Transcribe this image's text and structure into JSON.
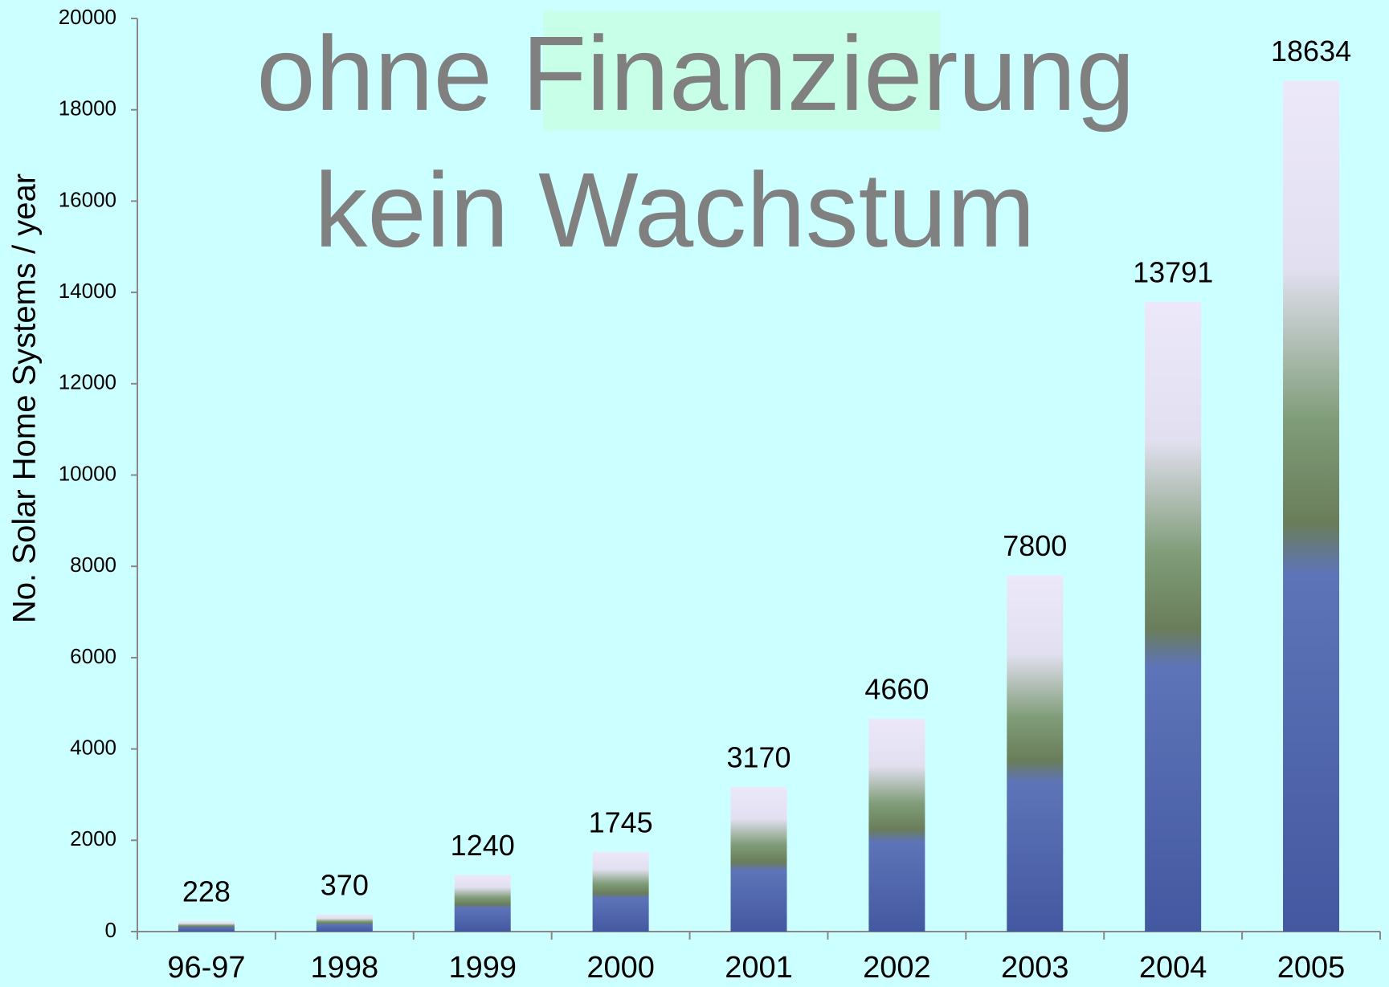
{
  "chart_data": {
    "type": "bar",
    "title": "ohne Finanzierung",
    "subtitle": "kein Wachstum",
    "y_label": "No. Solar Home Systems / year",
    "categories": [
      "96-97",
      "1998",
      "1999",
      "2000",
      "2001",
      "2002",
      "2003",
      "2004",
      "2005"
    ],
    "values": [
      228,
      370,
      1240,
      1745,
      3170,
      4660,
      7800,
      13791,
      18634
    ],
    "ylim": [
      0,
      20000
    ],
    "yticks": [
      0,
      2000,
      4000,
      6000,
      8000,
      10000,
      12000,
      14000,
      16000,
      18000,
      20000
    ],
    "grid": false
  }
}
